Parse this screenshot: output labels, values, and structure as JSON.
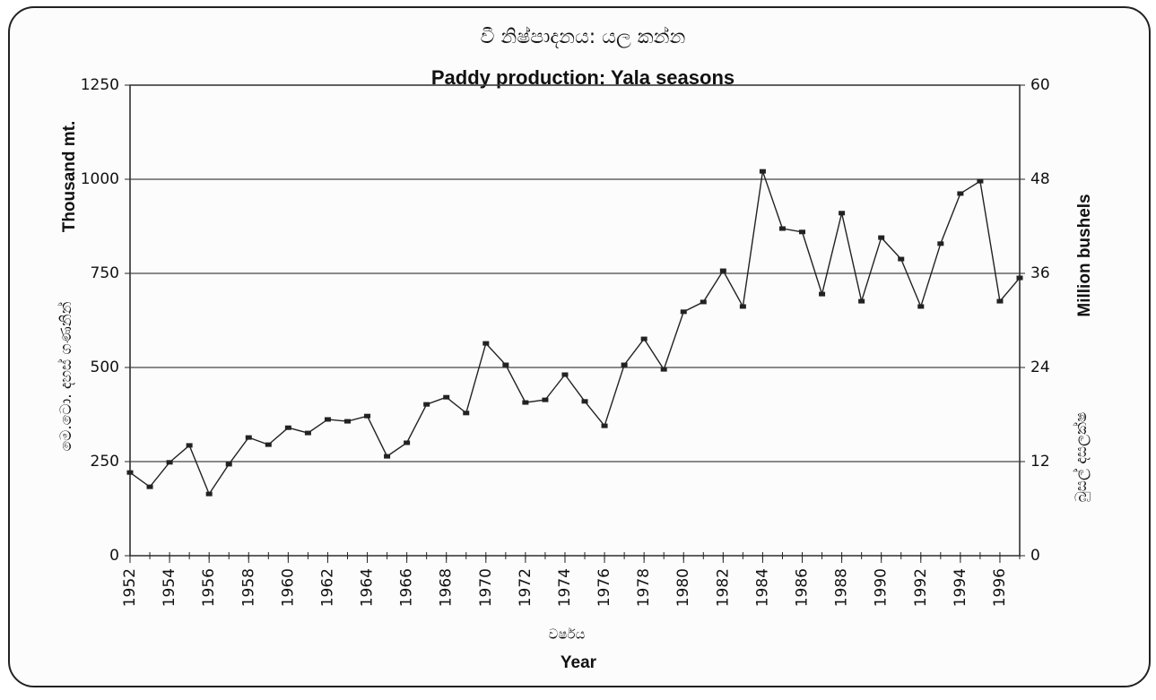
{
  "chart_data": {
    "type": "line",
    "title": "වී නිෂ්පාදනය: යල කන්න",
    "subtitle": "Paddy production: Yala seasons",
    "y_label": "Thousand mt.",
    "y_label_si": "මෙ.ටො. දහස් ගණනින්",
    "y2_label": "Million bushels",
    "y2_label_si": "බුසල් දසලක්ෂ",
    "x_label_si": "වර්ෂය",
    "x_label": "Year",
    "x": [
      1952,
      1953,
      1954,
      1955,
      1956,
      1957,
      1958,
      1959,
      1960,
      1961,
      1962,
      1963,
      1964,
      1965,
      1966,
      1967,
      1968,
      1969,
      1970,
      1971,
      1972,
      1973,
      1974,
      1975,
      1976,
      1977,
      1978,
      1979,
      1980,
      1981,
      1982,
      1983,
      1984,
      1985,
      1986,
      1987,
      1988,
      1989,
      1990,
      1991,
      1992,
      1993,
      1994,
      1995,
      1996,
      1997
    ],
    "series": [
      {
        "name": "Paddy production",
        "color": "#222222",
        "values": [
          221,
          183,
          248,
          293,
          164,
          243,
          314,
          295,
          340,
          326,
          362,
          357,
          371,
          264,
          300,
          402,
          421,
          379,
          564,
          507,
          407,
          414,
          481,
          410,
          345,
          507,
          576,
          495,
          648,
          674,
          757,
          662,
          1021,
          869,
          860,
          695,
          910,
          676,
          845,
          788,
          662,
          829,
          962,
          995,
          676,
          738
        ]
      }
    ],
    "xlim": [
      1952,
      1997
    ],
    "xticks": [
      1952,
      1954,
      1956,
      1958,
      1960,
      1962,
      1964,
      1966,
      1968,
      1970,
      1972,
      1974,
      1976,
      1978,
      1980,
      1982,
      1984,
      1986,
      1988,
      1990,
      1992,
      1994,
      1996
    ],
    "ylim": [
      0,
      1250
    ],
    "yticks": [
      0,
      250,
      500,
      750,
      1000,
      1250
    ],
    "y2lim": [
      0,
      60
    ],
    "y2ticks": [
      0,
      12,
      24,
      36,
      48,
      60
    ],
    "grid": true
  }
}
